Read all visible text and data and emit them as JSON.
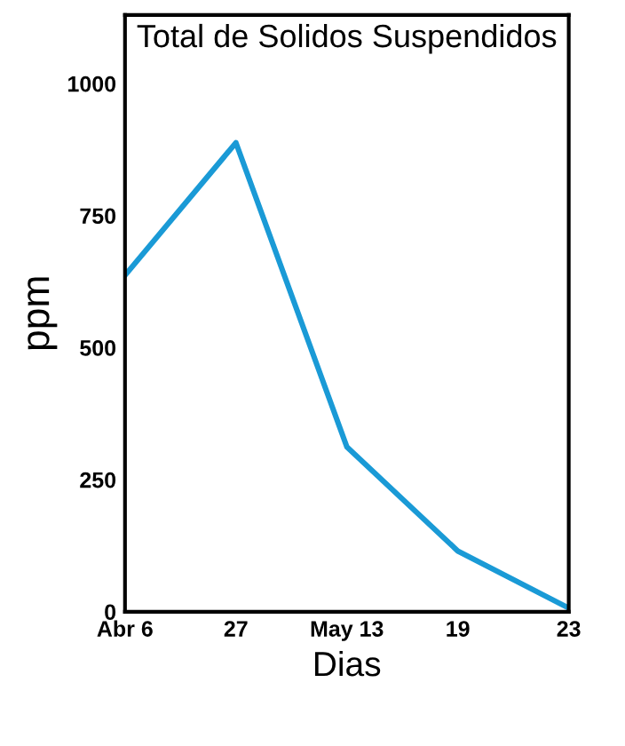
{
  "chart_data": {
    "type": "line",
    "title": "Total de Solidos Suspendidos",
    "xlabel": "Dias",
    "ylabel": "ppm",
    "categories": [
      "Abr 6",
      "27",
      "May 13",
      "19",
      "23"
    ],
    "series": [
      {
        "color": "#1a9ad6",
        "values": [
          637,
          888,
          312,
          115,
          7
        ]
      }
    ],
    "ylim": [
      0,
      1130
    ],
    "yticks": [
      0,
      250,
      500,
      750,
      1000
    ],
    "grid": false,
    "legend": false,
    "marker": "none",
    "line_style": "solid"
  }
}
